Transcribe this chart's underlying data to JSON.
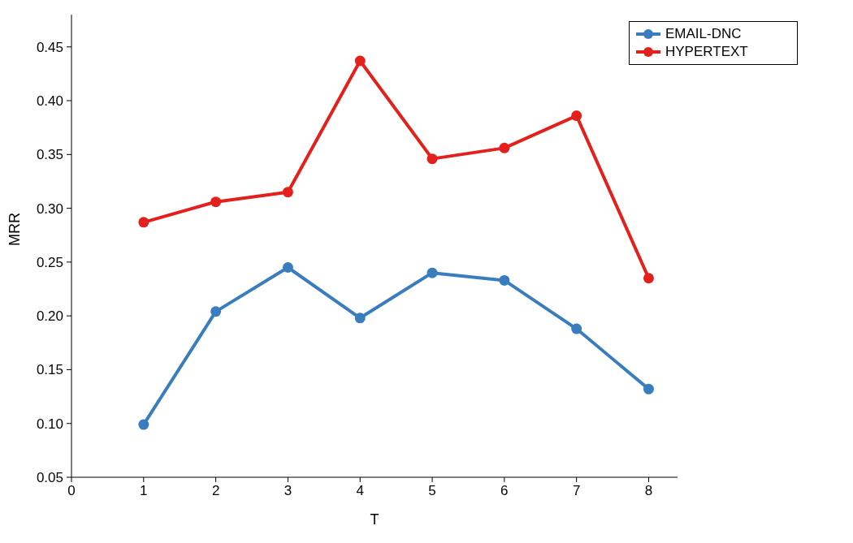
{
  "chart_data": {
    "type": "line",
    "xlabel": "T",
    "ylabel": "MRR",
    "x": [
      1,
      2,
      3,
      4,
      5,
      6,
      7,
      8
    ],
    "series": [
      {
        "name": "EMAIL-DNC",
        "color": "#3a7dbf",
        "values": [
          0.099,
          0.204,
          0.245,
          0.198,
          0.24,
          0.233,
          0.188,
          0.132
        ]
      },
      {
        "name": "HYPERTEXT",
        "color": "#e3201b",
        "values": [
          0.287,
          0.306,
          0.315,
          0.437,
          0.346,
          0.356,
          0.386,
          0.235
        ]
      }
    ],
    "xlim": [
      0,
      8.4
    ],
    "xticks": [
      0,
      1,
      2,
      3,
      4,
      5,
      6,
      7,
      8
    ],
    "ylim": [
      0.05,
      0.48
    ],
    "yticks": [
      0.05,
      {
        "value": 0.1,
        "label": "0.10"
      },
      0.15,
      {
        "value": 0.2,
        "label": "0.20"
      },
      0.25,
      {
        "value": 0.3,
        "label": "0.30"
      },
      0.35,
      {
        "value": 0.4,
        "label": "0.40"
      },
      0.45
    ],
    "grid": false,
    "legend": "top right",
    "marker": "circle",
    "line_style": "solid"
  }
}
